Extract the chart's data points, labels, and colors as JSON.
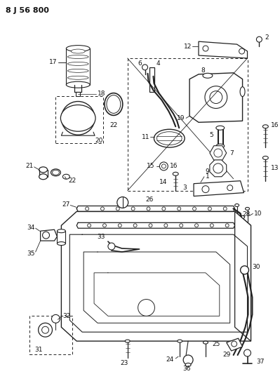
{
  "title": "8 J 56 800",
  "bg_color": "#ffffff",
  "lc": "#222222",
  "lbl": "#111111",
  "fig_width": 3.99,
  "fig_height": 5.33,
  "dpi": 100
}
